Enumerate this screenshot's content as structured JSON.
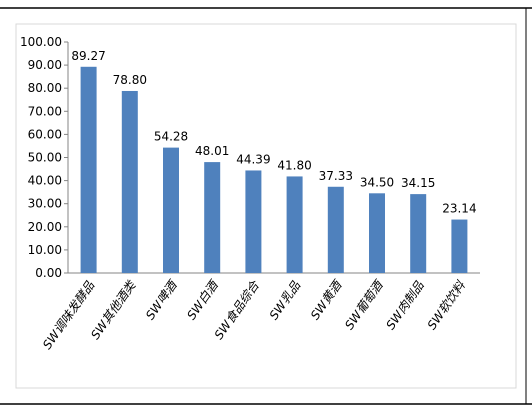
{
  "chart_data": {
    "type": "bar",
    "categories": [
      "SW调味发酵品",
      "SW其他酒类",
      "SW啤酒",
      "SW白酒",
      "SW食品综合",
      "SW乳品",
      "SW黄酒",
      "SW葡萄酒",
      "SW肉制品",
      "SW软饮料"
    ],
    "values": [
      89.27,
      78.8,
      54.28,
      48.01,
      44.39,
      41.8,
      37.33,
      34.5,
      34.15,
      23.14
    ],
    "value_labels": [
      "89.27",
      "78.80",
      "54.28",
      "48.01",
      "44.39",
      "41.80",
      "37.33",
      "34.50",
      "34.15",
      "23.14"
    ],
    "y_ticks": [
      "0.00",
      "10.00",
      "20.00",
      "30.00",
      "40.00",
      "50.00",
      "60.00",
      "70.00",
      "80.00",
      "90.00",
      "100.00"
    ],
    "ylim": [
      0,
      100
    ],
    "title": "",
    "xlabel": "",
    "ylabel": "",
    "grid": false,
    "legend": "none",
    "bar_color": "#4F81BD"
  }
}
